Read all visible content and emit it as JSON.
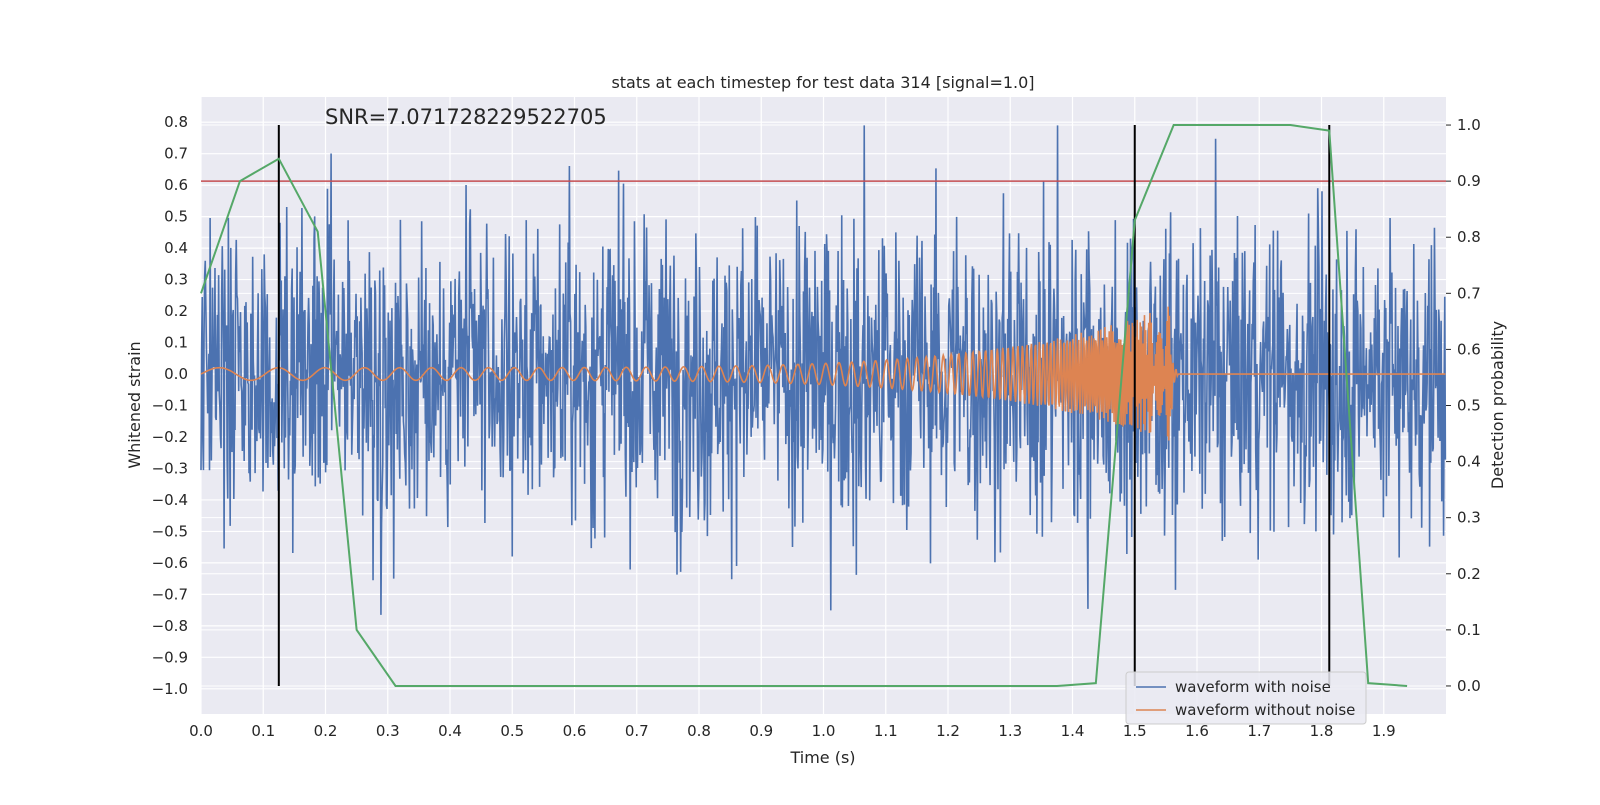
{
  "chart_data": {
    "type": "line",
    "title": "stats at each timestep for test data 314 [signal=1.0]",
    "xlabel": "Time (s)",
    "ylabel": "Whitened strain",
    "y2label": "Detection probability",
    "annotation": "SNR=7.071728229522705",
    "xlim": [
      0.0,
      2.0
    ],
    "ylim": [
      -1.08,
      0.88
    ],
    "y2lim": [
      -0.05,
      1.05
    ],
    "x_ticks": [
      "0.0",
      "0.1",
      "0.2",
      "0.3",
      "0.4",
      "0.5",
      "0.6",
      "0.7",
      "0.8",
      "0.9",
      "1.0",
      "1.1",
      "1.2",
      "1.3",
      "1.4",
      "1.5",
      "1.6",
      "1.7",
      "1.8",
      "1.9"
    ],
    "y_ticks": [
      "0.8",
      "0.7",
      "0.6",
      "0.5",
      "0.4",
      "0.3",
      "0.2",
      "0.1",
      "0.0",
      "−0.1",
      "−0.2",
      "−0.3",
      "−0.4",
      "−0.5",
      "−0.6",
      "−0.7",
      "−0.8",
      "−0.9",
      "−1.0"
    ],
    "y2_ticks": [
      "1.0",
      "0.9",
      "0.8",
      "0.7",
      "0.6",
      "0.5",
      "0.4",
      "0.3",
      "0.2",
      "0.1",
      "0.0"
    ],
    "grid": true,
    "legend_placement": "lower-right",
    "colors": {
      "noise": "#4c72b0",
      "clean": "#dd8452",
      "probability": "#55a868",
      "threshold": "#c44e52",
      "markers": "#000000",
      "plot_bg": "#eaeaf2",
      "grid": "#ffffff"
    },
    "series": [
      {
        "name": "waveform with noise",
        "generator": "random-noise",
        "sample_count": 2048,
        "value_range": [
          -1.0,
          0.79
        ]
      },
      {
        "name": "waveform without noise",
        "generator": "chirp",
        "sample_count": 2048,
        "chirp_start": 0.0,
        "chirp_end": 1.56,
        "start_amplitude": 0.02,
        "end_amplitude": 0.22
      },
      {
        "axis": "right",
        "x": [
          0.0,
          0.0625,
          0.125,
          0.1875,
          0.25,
          0.3125,
          0.375,
          0.4375,
          0.5,
          0.5625,
          0.625,
          0.6875,
          0.75,
          0.8125,
          0.875,
          0.9375,
          1.0,
          1.0625,
          1.125,
          1.1875,
          1.25,
          1.3125,
          1.375,
          1.4375,
          1.5,
          1.5625,
          1.625,
          1.6875,
          1.75,
          1.8125,
          1.875,
          1.9375
        ],
        "y": [
          0.7,
          0.9,
          0.94,
          0.81,
          0.1,
          0.0,
          0.0,
          0.0,
          0.0,
          0.0,
          0.0,
          0.0,
          0.0,
          0.0,
          0.0,
          0.0,
          0.0,
          0.0,
          0.0,
          0.0,
          0.0,
          0.0,
          0.0,
          0.005,
          0.83,
          1.0,
          1.0,
          1.0,
          1.0,
          0.99,
          0.005,
          0.0
        ]
      }
    ],
    "threshold_y2": 0.9,
    "markers_x": [
      0.125,
      1.5,
      1.8125
    ]
  }
}
